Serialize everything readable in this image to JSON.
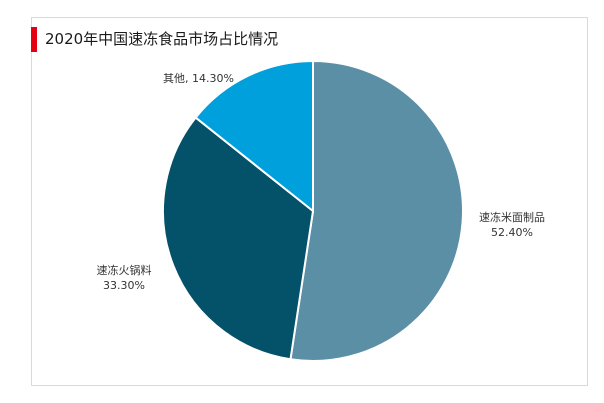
{
  "title": "2020年中国速冻食品市场占比情况",
  "chart_data": {
    "type": "pie",
    "title": "2020年中国速冻食品市场占比情况",
    "slices": [
      {
        "label": "速冻米面制品",
        "value": 52.4,
        "value_text": "52.40%",
        "color": "#5b8fa6"
      },
      {
        "label": "速冻火锅料",
        "value": 33.3,
        "value_text": "33.30%",
        "color": "#04516a"
      },
      {
        "label": "其他",
        "value": 14.3,
        "value_text": "14.30%",
        "color": "#00a0dc"
      }
    ],
    "start_angle_deg": 0,
    "direction": "clockwise",
    "legend": "none"
  }
}
